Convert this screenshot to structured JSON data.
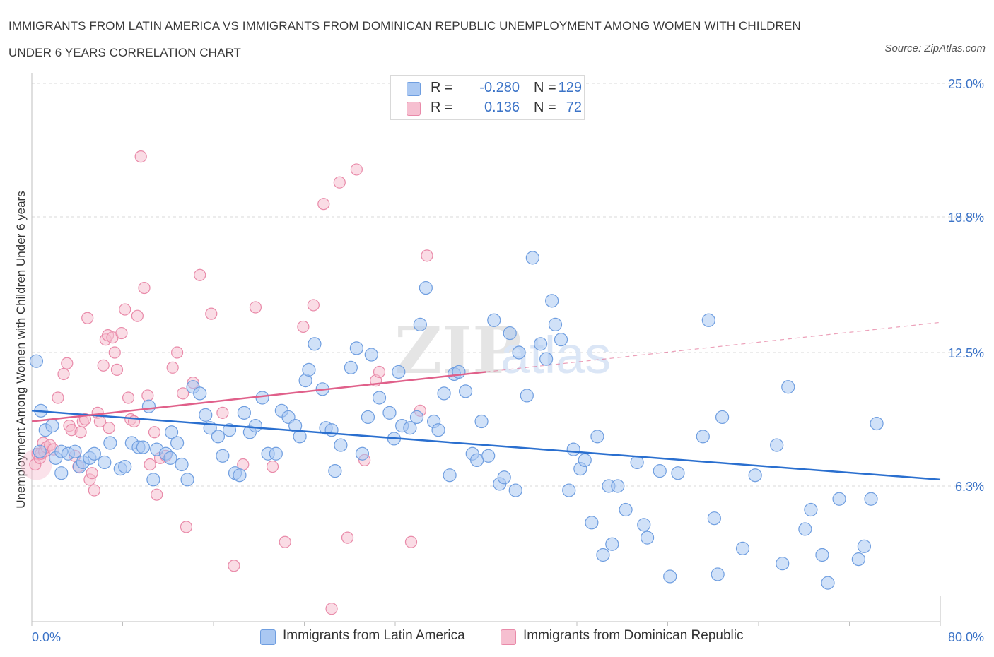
{
  "title": "IMMIGRANTS FROM LATIN AMERICA VS IMMIGRANTS FROM DOMINICAN REPUBLIC UNEMPLOYMENT AMONG WOMEN WITH CHILDREN UNDER 6 YEARS CORRELATION CHART",
  "source": "Source: ZipAtlas.com",
  "watermark": "ZIPatlas",
  "colors": {
    "blue_fill": "#aac8f2",
    "blue_stroke": "#6f9ee0",
    "blue_line": "#2a6fcf",
    "pink_fill": "#f6bfd0",
    "pink_stroke": "#e98aa9",
    "pink_line": "#e0608a",
    "tick_label": "#3b73c7",
    "grid": "#d9d9d9"
  },
  "legend": {
    "rows": [
      {
        "r_label": "R =",
        "r_value": "-0.280",
        "n_label": "N =",
        "n_value": "129"
      },
      {
        "r_label": "R =",
        "r_value": "0.136",
        "n_label": "N =",
        "n_value": "72"
      }
    ]
  },
  "bottom_legend": {
    "blue": "Immigrants from Latin America",
    "pink": "Immigrants from Dominican Republic"
  },
  "chart_data": {
    "type": "scatter",
    "ylabel": "Unemployment Among Women with Children Under 6 years",
    "xlabel": "",
    "xlim": [
      0,
      80
    ],
    "ylim": [
      0,
      25
    ],
    "x_tick_labels": [
      {
        "value": 0,
        "label": "0.0%"
      },
      {
        "value": 80,
        "label": "80.0%"
      }
    ],
    "y_tick_labels": [
      {
        "value": 25.0,
        "label": "25.0%"
      },
      {
        "value": 18.8,
        "label": "18.8%"
      },
      {
        "value": 12.5,
        "label": "12.5%"
      },
      {
        "value": 6.3,
        "label": "6.3%"
      }
    ],
    "grid": "horizontal dashed",
    "series": [
      {
        "name": "Immigrants from Latin America",
        "color": "blue",
        "trend": {
          "x": [
            0,
            80
          ],
          "y": [
            9.8,
            6.6
          ],
          "dashed_beyond": null
        },
        "points": [
          [
            0.4,
            12.1
          ],
          [
            0.7,
            7.9
          ],
          [
            0.8,
            9.8
          ],
          [
            1.2,
            8.9
          ],
          [
            1.8,
            9.1
          ],
          [
            2.1,
            7.6
          ],
          [
            2.6,
            7.9
          ],
          [
            3.2,
            7.8
          ],
          [
            3.8,
            7.9
          ],
          [
            4.2,
            7.2
          ],
          [
            4.5,
            7.4
          ],
          [
            2.6,
            6.9
          ],
          [
            5.1,
            7.6
          ],
          [
            5.5,
            7.8
          ],
          [
            6.4,
            7.4
          ],
          [
            6.9,
            8.3
          ],
          [
            7.8,
            7.1
          ],
          [
            8.2,
            7.2
          ],
          [
            8.8,
            8.3
          ],
          [
            9.4,
            8.1
          ],
          [
            9.8,
            8.1
          ],
          [
            10.3,
            10.0
          ],
          [
            10.7,
            6.6
          ],
          [
            11.0,
            8.0
          ],
          [
            11.8,
            7.8
          ],
          [
            12.2,
            7.6
          ],
          [
            12.3,
            8.8
          ],
          [
            12.8,
            8.3
          ],
          [
            13.2,
            7.3
          ],
          [
            13.7,
            6.6
          ],
          [
            14.2,
            10.9
          ],
          [
            14.8,
            10.6
          ],
          [
            15.3,
            9.6
          ],
          [
            15.7,
            9.0
          ],
          [
            16.4,
            8.6
          ],
          [
            16.8,
            7.7
          ],
          [
            17.4,
            8.9
          ],
          [
            17.9,
            6.9
          ],
          [
            18.3,
            6.8
          ],
          [
            18.7,
            9.7
          ],
          [
            19.2,
            8.8
          ],
          [
            19.7,
            9.1
          ],
          [
            20.3,
            10.4
          ],
          [
            20.8,
            7.8
          ],
          [
            21.5,
            7.8
          ],
          [
            22.0,
            9.8
          ],
          [
            22.6,
            9.5
          ],
          [
            23.2,
            9.1
          ],
          [
            23.6,
            8.6
          ],
          [
            24.1,
            11.2
          ],
          [
            24.4,
            11.7
          ],
          [
            24.9,
            12.9
          ],
          [
            25.6,
            10.8
          ],
          [
            25.9,
            9.0
          ],
          [
            26.4,
            8.9
          ],
          [
            26.7,
            7.0
          ],
          [
            27.2,
            8.2
          ],
          [
            28.1,
            11.8
          ],
          [
            28.6,
            12.7
          ],
          [
            29.1,
            7.8
          ],
          [
            29.6,
            9.5
          ],
          [
            29.9,
            12.4
          ],
          [
            30.6,
            10.4
          ],
          [
            31.5,
            9.7
          ],
          [
            31.9,
            8.5
          ],
          [
            32.3,
            11.6
          ],
          [
            32.6,
            9.1
          ],
          [
            33.3,
            9.0
          ],
          [
            33.9,
            9.5
          ],
          [
            34.2,
            13.8
          ],
          [
            34.7,
            15.5
          ],
          [
            35.4,
            9.3
          ],
          [
            35.8,
            8.9
          ],
          [
            36.3,
            10.6
          ],
          [
            36.8,
            6.8
          ],
          [
            37.2,
            11.5
          ],
          [
            37.6,
            11.6
          ],
          [
            38.2,
            10.7
          ],
          [
            38.8,
            7.8
          ],
          [
            39.2,
            7.5
          ],
          [
            39.6,
            9.3
          ],
          [
            40.2,
            7.7
          ],
          [
            40.7,
            14.0
          ],
          [
            41.2,
            6.4
          ],
          [
            41.6,
            6.7
          ],
          [
            42.1,
            13.4
          ],
          [
            42.6,
            6.1
          ],
          [
            42.9,
            12.5
          ],
          [
            43.6,
            10.5
          ],
          [
            44.1,
            16.9
          ],
          [
            44.8,
            12.9
          ],
          [
            45.3,
            12.2
          ],
          [
            45.8,
            14.9
          ],
          [
            46.1,
            13.8
          ],
          [
            46.6,
            13.1
          ],
          [
            47.3,
            6.1
          ],
          [
            47.7,
            8.0
          ],
          [
            48.3,
            7.1
          ],
          [
            48.7,
            7.5
          ],
          [
            49.3,
            4.6
          ],
          [
            49.8,
            8.6
          ],
          [
            50.3,
            3.1
          ],
          [
            50.8,
            6.3
          ],
          [
            51.1,
            3.6
          ],
          [
            51.6,
            6.3
          ],
          [
            52.3,
            5.2
          ],
          [
            53.3,
            7.4
          ],
          [
            53.9,
            4.5
          ],
          [
            54.2,
            3.9
          ],
          [
            55.3,
            7.0
          ],
          [
            56.2,
            2.1
          ],
          [
            56.9,
            6.9
          ],
          [
            59.1,
            8.6
          ],
          [
            59.6,
            14.0
          ],
          [
            60.1,
            4.8
          ],
          [
            60.4,
            2.2
          ],
          [
            60.8,
            9.5
          ],
          [
            62.6,
            3.4
          ],
          [
            63.7,
            6.8
          ],
          [
            65.6,
            8.2
          ],
          [
            66.1,
            2.7
          ],
          [
            66.6,
            10.9
          ],
          [
            68.1,
            4.3
          ],
          [
            68.6,
            5.2
          ],
          [
            69.6,
            3.1
          ],
          [
            70.1,
            1.8
          ],
          [
            71.1,
            5.7
          ],
          [
            72.8,
            2.9
          ],
          [
            73.3,
            3.5
          ],
          [
            73.9,
            5.7
          ],
          [
            74.4,
            9.2
          ]
        ]
      },
      {
        "name": "Immigrants from Dominican Republic",
        "color": "pink",
        "trend": {
          "x": [
            0,
            40
          ],
          "y": [
            9.3,
            11.6
          ],
          "dashed_x": [
            40,
            80
          ],
          "dashed_y": [
            11.6,
            13.9
          ]
        },
        "points": [
          [
            0.3,
            7.3
          ],
          [
            0.5,
            7.8
          ],
          [
            0.7,
            7.6
          ],
          [
            0.8,
            7.8
          ],
          [
            1.0,
            8.3
          ],
          [
            1.1,
            7.9
          ],
          [
            1.3,
            8.1
          ],
          [
            1.6,
            8.2
          ],
          [
            1.9,
            8.0
          ],
          [
            2.3,
            10.4
          ],
          [
            2.8,
            11.5
          ],
          [
            3.1,
            12.0
          ],
          [
            3.3,
            9.1
          ],
          [
            3.5,
            8.9
          ],
          [
            3.8,
            7.7
          ],
          [
            4.1,
            7.2
          ],
          [
            4.3,
            8.8
          ],
          [
            4.5,
            9.3
          ],
          [
            4.7,
            9.4
          ],
          [
            4.9,
            14.1
          ],
          [
            5.1,
            6.6
          ],
          [
            5.3,
            6.9
          ],
          [
            5.5,
            6.1
          ],
          [
            5.8,
            9.7
          ],
          [
            6.0,
            9.3
          ],
          [
            6.3,
            11.9
          ],
          [
            6.5,
            13.1
          ],
          [
            6.7,
            13.3
          ],
          [
            6.8,
            9.0
          ],
          [
            7.1,
            13.2
          ],
          [
            7.3,
            12.5
          ],
          [
            7.5,
            11.7
          ],
          [
            7.9,
            13.4
          ],
          [
            8.2,
            14.5
          ],
          [
            8.5,
            10.4
          ],
          [
            8.7,
            9.4
          ],
          [
            9.0,
            9.3
          ],
          [
            9.3,
            14.2
          ],
          [
            9.6,
            21.6
          ],
          [
            9.9,
            15.5
          ],
          [
            10.2,
            10.5
          ],
          [
            10.4,
            7.3
          ],
          [
            10.8,
            8.8
          ],
          [
            11.0,
            5.9
          ],
          [
            11.3,
            7.6
          ],
          [
            11.8,
            7.7
          ],
          [
            12.4,
            11.8
          ],
          [
            12.8,
            12.5
          ],
          [
            13.3,
            10.6
          ],
          [
            13.6,
            4.4
          ],
          [
            14.2,
            11.1
          ],
          [
            14.8,
            16.1
          ],
          [
            15.8,
            14.3
          ],
          [
            16.8,
            9.7
          ],
          [
            17.8,
            2.6
          ],
          [
            18.6,
            7.3
          ],
          [
            19.7,
            14.6
          ],
          [
            21.2,
            7.2
          ],
          [
            22.3,
            3.7
          ],
          [
            23.9,
            13.7
          ],
          [
            24.8,
            14.7
          ],
          [
            25.7,
            19.4
          ],
          [
            26.4,
            0.6
          ],
          [
            27.1,
            20.4
          ],
          [
            27.8,
            3.9
          ],
          [
            28.6,
            21.0
          ],
          [
            29.3,
            7.5
          ],
          [
            30.3,
            11.2
          ],
          [
            30.6,
            11.6
          ],
          [
            33.4,
            3.7
          ],
          [
            34.2,
            9.8
          ],
          [
            34.8,
            17.0
          ]
        ]
      }
    ]
  }
}
